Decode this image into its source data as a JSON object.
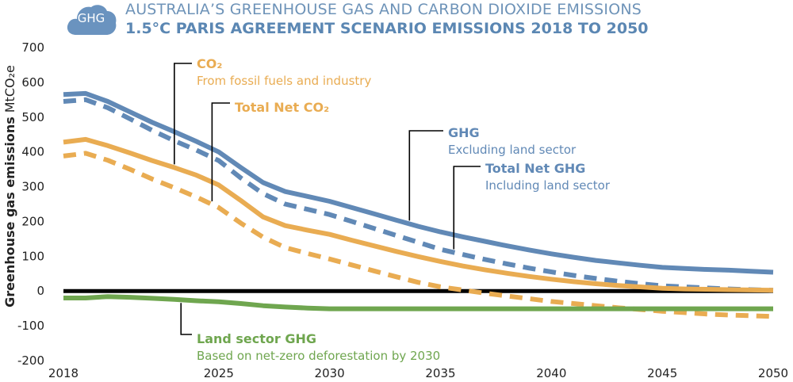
{
  "header": {
    "logo_text": "GHG",
    "title": "AUSTRALIA’S GREENHOUSE GAS AND CARBON DIOXIDE EMISSIONS",
    "subtitle": "1.5°C PARIS AGREEMENT SCENARIO EMISSIONS 2018 TO 2050"
  },
  "colors": {
    "ghg": "#6189b6",
    "co2": "#e9ac52",
    "land": "#6fa64f",
    "zero_line": "#000000",
    "axis_text": "#222222"
  },
  "chart_data": {
    "type": "line",
    "ylabel_bold": "Greenhouse gas emissions",
    "ylabel_unit": "MtCO₂e",
    "ylim": [
      -200,
      700
    ],
    "xlim": [
      2018,
      2050
    ],
    "yticks": [
      700,
      600,
      500,
      400,
      300,
      200,
      100,
      0,
      -100,
      -200
    ],
    "xticks": [
      2018,
      2025,
      2030,
      2035,
      2040,
      2045,
      2050
    ],
    "grid": false,
    "series": [
      {
        "key": "ghg",
        "name": "GHG",
        "sublabel": "Excluding land sector",
        "style": "solid",
        "color_key": "ghg",
        "points": [
          [
            2018,
            565
          ],
          [
            2019,
            568
          ],
          [
            2020,
            545
          ],
          [
            2021,
            515
          ],
          [
            2022,
            485
          ],
          [
            2023,
            458
          ],
          [
            2024,
            430
          ],
          [
            2025,
            400
          ],
          [
            2026,
            355
          ],
          [
            2027,
            312
          ],
          [
            2028,
            286
          ],
          [
            2029,
            272
          ],
          [
            2030,
            258
          ],
          [
            2031,
            240
          ],
          [
            2032,
            222
          ],
          [
            2033,
            204
          ],
          [
            2034,
            186
          ],
          [
            2035,
            170
          ],
          [
            2036,
            156
          ],
          [
            2037,
            143
          ],
          [
            2038,
            130
          ],
          [
            2039,
            118
          ],
          [
            2040,
            107
          ],
          [
            2041,
            97
          ],
          [
            2042,
            88
          ],
          [
            2043,
            81
          ],
          [
            2044,
            74
          ],
          [
            2045,
            68
          ],
          [
            2046,
            65
          ],
          [
            2047,
            62
          ],
          [
            2048,
            60
          ],
          [
            2049,
            57
          ],
          [
            2050,
            54
          ]
        ]
      },
      {
        "key": "total_net_ghg",
        "name": "Total Net GHG",
        "sublabel": "Including land sector",
        "style": "dashed",
        "color_key": "ghg",
        "points": [
          [
            2018,
            545
          ],
          [
            2019,
            550
          ],
          [
            2020,
            527
          ],
          [
            2021,
            495
          ],
          [
            2022,
            462
          ],
          [
            2023,
            432
          ],
          [
            2024,
            405
          ],
          [
            2025,
            375
          ],
          [
            2026,
            325
          ],
          [
            2027,
            280
          ],
          [
            2028,
            250
          ],
          [
            2029,
            235
          ],
          [
            2030,
            220
          ],
          [
            2031,
            200
          ],
          [
            2032,
            180
          ],
          [
            2033,
            160
          ],
          [
            2034,
            140
          ],
          [
            2035,
            120
          ],
          [
            2036,
            105
          ],
          [
            2037,
            91
          ],
          [
            2038,
            78
          ],
          [
            2039,
            66
          ],
          [
            2040,
            55
          ],
          [
            2041,
            45
          ],
          [
            2042,
            36
          ],
          [
            2043,
            28
          ],
          [
            2044,
            21
          ],
          [
            2045,
            15
          ],
          [
            2046,
            12
          ],
          [
            2047,
            9
          ],
          [
            2048,
            6
          ],
          [
            2049,
            4
          ],
          [
            2050,
            2
          ]
        ]
      },
      {
        "key": "co2",
        "name": "CO₂",
        "sublabel": "From fossil fuels and industry",
        "style": "solid",
        "color_key": "co2",
        "points": [
          [
            2018,
            428
          ],
          [
            2019,
            436
          ],
          [
            2020,
            418
          ],
          [
            2021,
            397
          ],
          [
            2022,
            375
          ],
          [
            2023,
            355
          ],
          [
            2024,
            333
          ],
          [
            2025,
            305
          ],
          [
            2026,
            260
          ],
          [
            2027,
            213
          ],
          [
            2028,
            188
          ],
          [
            2029,
            175
          ],
          [
            2030,
            163
          ],
          [
            2031,
            146
          ],
          [
            2032,
            130
          ],
          [
            2033,
            114
          ],
          [
            2034,
            99
          ],
          [
            2035,
            85
          ],
          [
            2036,
            72
          ],
          [
            2037,
            61
          ],
          [
            2038,
            51
          ],
          [
            2039,
            42
          ],
          [
            2040,
            34
          ],
          [
            2041,
            27
          ],
          [
            2042,
            21
          ],
          [
            2043,
            16
          ],
          [
            2044,
            12
          ],
          [
            2045,
            8
          ],
          [
            2046,
            6
          ],
          [
            2047,
            5
          ],
          [
            2048,
            4
          ],
          [
            2049,
            3
          ],
          [
            2050,
            2
          ]
        ]
      },
      {
        "key": "total_net_co2",
        "name": "Total Net CO₂",
        "sublabel": "",
        "style": "dashed",
        "color_key": "co2",
        "points": [
          [
            2018,
            388
          ],
          [
            2019,
            396
          ],
          [
            2020,
            376
          ],
          [
            2021,
            350
          ],
          [
            2022,
            322
          ],
          [
            2023,
            297
          ],
          [
            2024,
            270
          ],
          [
            2025,
            240
          ],
          [
            2026,
            195
          ],
          [
            2027,
            155
          ],
          [
            2028,
            125
          ],
          [
            2029,
            108
          ],
          [
            2030,
            92
          ],
          [
            2031,
            75
          ],
          [
            2032,
            58
          ],
          [
            2033,
            41
          ],
          [
            2034,
            25
          ],
          [
            2035,
            12
          ],
          [
            2036,
            3
          ],
          [
            2037,
            -6
          ],
          [
            2038,
            -14
          ],
          [
            2039,
            -22
          ],
          [
            2040,
            -30
          ],
          [
            2041,
            -36
          ],
          [
            2042,
            -42
          ],
          [
            2043,
            -48
          ],
          [
            2044,
            -53
          ],
          [
            2045,
            -58
          ],
          [
            2046,
            -62
          ],
          [
            2047,
            -66
          ],
          [
            2048,
            -69
          ],
          [
            2049,
            -71
          ],
          [
            2050,
            -73
          ]
        ]
      },
      {
        "key": "land",
        "name": "Land sector GHG",
        "sublabel": "Based on net-zero deforestation by 2030",
        "style": "solid",
        "color_key": "land",
        "points": [
          [
            2018,
            -20
          ],
          [
            2019,
            -20
          ],
          [
            2020,
            -16
          ],
          [
            2021,
            -18
          ],
          [
            2022,
            -21
          ],
          [
            2023,
            -24
          ],
          [
            2024,
            -28
          ],
          [
            2025,
            -31
          ],
          [
            2026,
            -36
          ],
          [
            2027,
            -42
          ],
          [
            2028,
            -46
          ],
          [
            2029,
            -49
          ],
          [
            2030,
            -51
          ],
          [
            2031,
            -51
          ],
          [
            2032,
            -51
          ],
          [
            2033,
            -51
          ],
          [
            2034,
            -51
          ],
          [
            2035,
            -51
          ],
          [
            2036,
            -51
          ],
          [
            2037,
            -51
          ],
          [
            2038,
            -51
          ],
          [
            2039,
            -51
          ],
          [
            2040,
            -51
          ],
          [
            2041,
            -51
          ],
          [
            2042,
            -51
          ],
          [
            2043,
            -51
          ],
          [
            2044,
            -51
          ],
          [
            2045,
            -51
          ],
          [
            2046,
            -51
          ],
          [
            2047,
            -51
          ],
          [
            2048,
            -51
          ],
          [
            2049,
            -51
          ],
          [
            2050,
            -51
          ]
        ]
      }
    ],
    "annotations": [
      {
        "series": "co2",
        "label": "CO₂",
        "sublabel": "From fossil fuels and industry",
        "color_key": "co2",
        "leader_x": 2023
      },
      {
        "series": "total_net_co2",
        "label": "Total Net CO₂",
        "sublabel": "",
        "color_key": "co2",
        "leader_x": 2024.7
      },
      {
        "series": "ghg",
        "label": "GHG",
        "sublabel": "Excluding land sector",
        "color_key": "ghg",
        "leader_x": 2033.6
      },
      {
        "series": "total_net_ghg",
        "label": "Total Net GHG",
        "sublabel": "Including land sector",
        "color_key": "ghg",
        "leader_x": 2035.6
      },
      {
        "series": "land",
        "label": "Land sector GHG",
        "sublabel": "Based on net-zero deforestation by 2030",
        "color_key": "land",
        "leader_x": 2023.3
      }
    ]
  }
}
